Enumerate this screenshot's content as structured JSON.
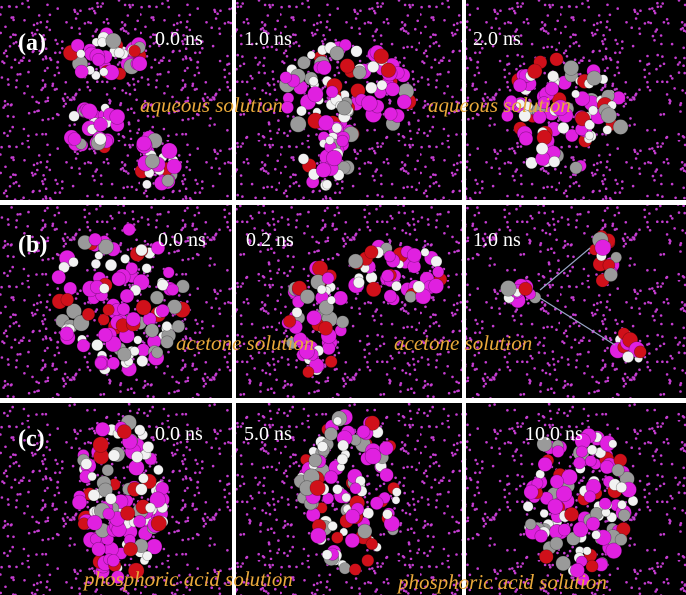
{
  "panels": [
    {
      "label": "(a)",
      "times": [
        "0.0 ns",
        "1.0 ns",
        "2.0 ns"
      ],
      "captions": [
        "aqueous solution",
        "aqueous solution"
      ]
    },
    {
      "label": "(b)",
      "times": [
        "0.0 ns",
        "0.2 ns",
        "1.0 ns"
      ],
      "captions": [
        "acetone solution",
        "acetone solution"
      ]
    },
    {
      "label": "(c)",
      "times": [
        "0.0 ns",
        "5.0 ns",
        "10.0 ns"
      ],
      "captions": [
        "phosphoric acid solution",
        "phosphoric acid solution"
      ]
    }
  ]
}
